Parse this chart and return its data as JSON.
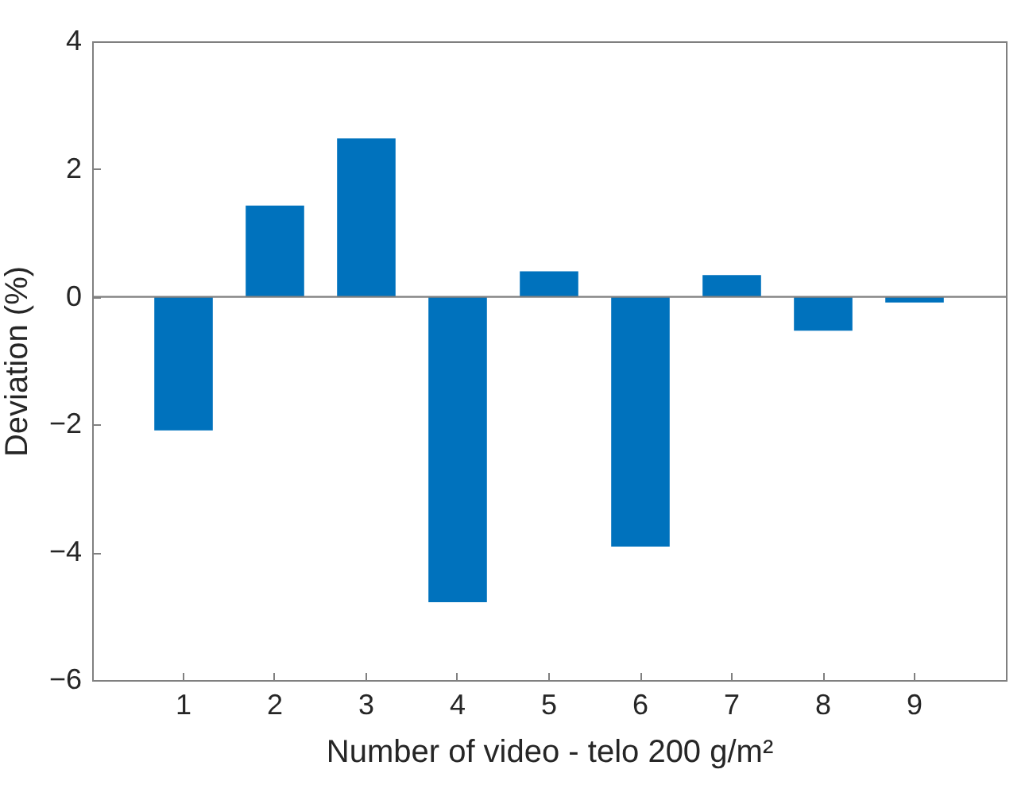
{
  "chart_data": {
    "type": "bar",
    "xlabel": "Number of video - telo 200 g/m²",
    "ylabel": "Deviation (%)",
    "categories": [
      "1",
      "2",
      "3",
      "4",
      "5",
      "6",
      "7",
      "8",
      "9"
    ],
    "values": [
      -2.09,
      1.43,
      2.48,
      -4.78,
      0.4,
      -3.91,
      0.34,
      -0.53,
      -0.09
    ],
    "color": "#0072bd",
    "ylim": [
      -6,
      4
    ],
    "yticks": [
      -6,
      -4,
      -2,
      0,
      2,
      4
    ],
    "grid": false,
    "ref_lines": [
      {
        "axis": "y",
        "value": 0,
        "color": "#808080"
      }
    ]
  }
}
